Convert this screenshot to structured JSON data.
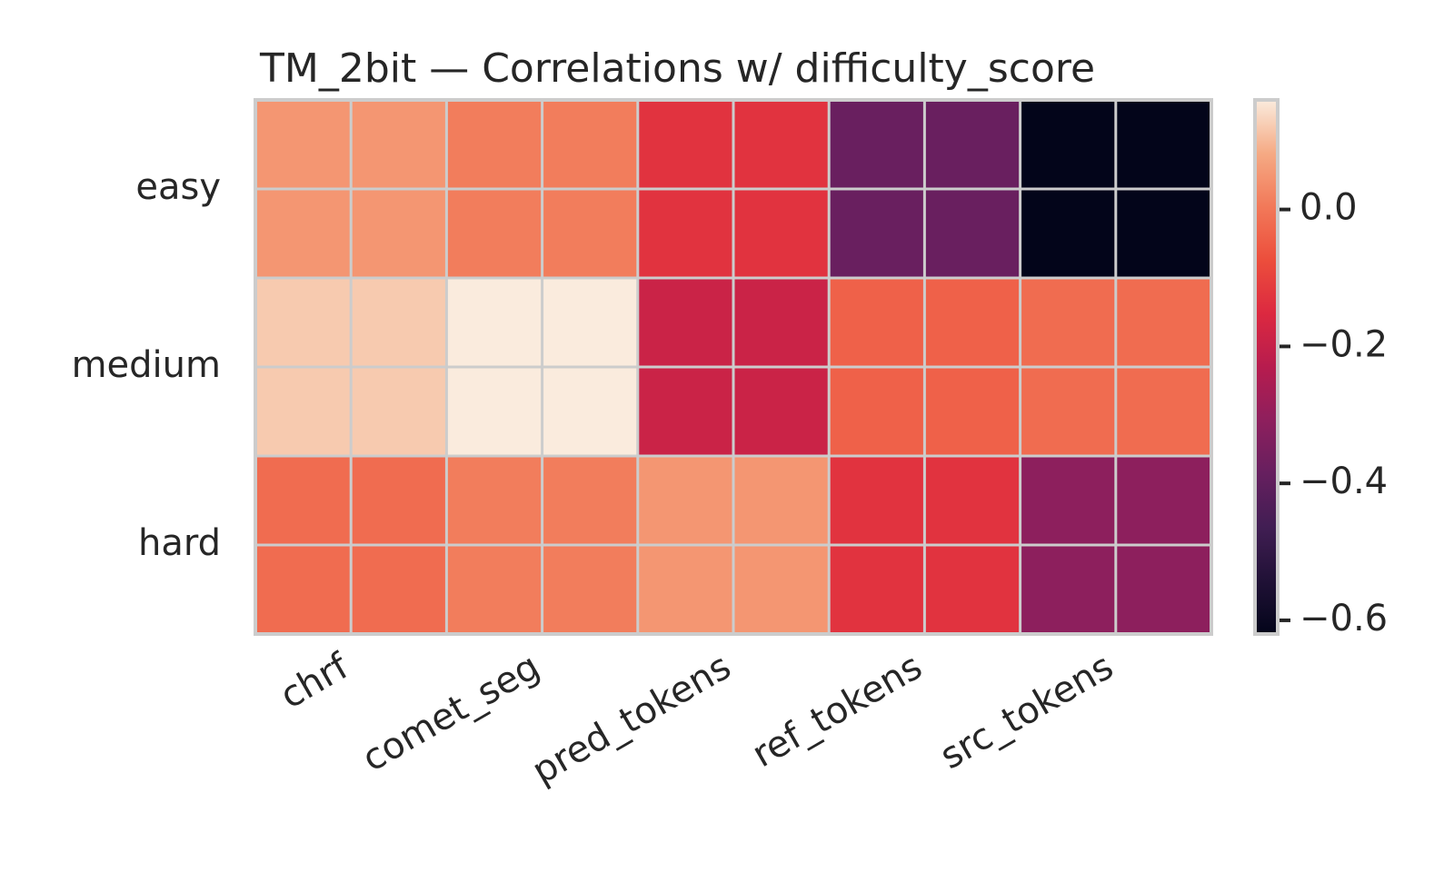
{
  "chart_data": {
    "type": "heatmap",
    "title": "TM_2bit — Correlations w/ difficulty_score",
    "xlabel": "",
    "ylabel": "",
    "rows": [
      "easy",
      "medium",
      "hard"
    ],
    "columns": [
      "chrf",
      "comet_seg",
      "pred_tokens",
      "ref_tokens",
      "src_tokens"
    ],
    "values": [
      [
        0.05,
        0.01,
        -0.13,
        -0.38,
        -0.62
      ],
      [
        0.12,
        0.16,
        -0.19,
        -0.04,
        -0.02
      ],
      [
        -0.02,
        0.01,
        0.05,
        -0.13,
        -0.31
      ]
    ],
    "colorbar": {
      "ticks": [
        0.0,
        -0.2,
        -0.4,
        -0.6
      ],
      "tick_labels": [
        "0.0",
        "−0.2",
        "−0.4",
        "−0.6"
      ],
      "range": [
        -0.62,
        0.16
      ]
    },
    "colormap": "rocket",
    "grid": true
  }
}
